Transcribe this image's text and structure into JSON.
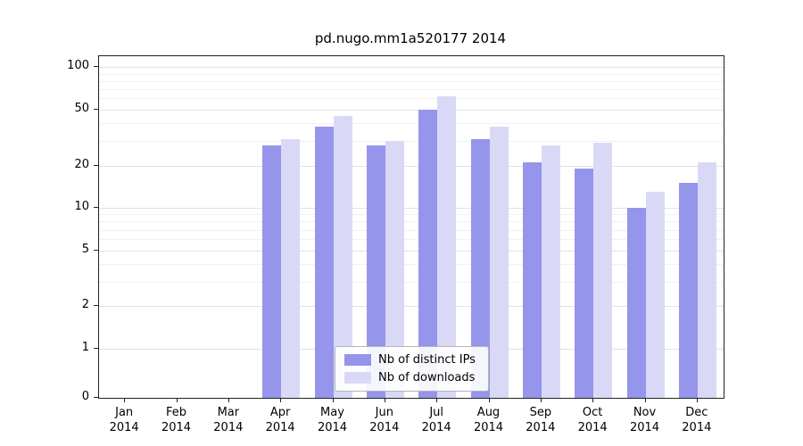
{
  "title": "pd.nugo.mm1a520177 2014",
  "chart_data": {
    "type": "bar",
    "title": "pd.nugo.mm1a520177 2014",
    "categories": [
      "Jan",
      "Feb",
      "Mar",
      "Apr",
      "May",
      "Jun",
      "Jul",
      "Aug",
      "Sep",
      "Oct",
      "Nov",
      "Dec"
    ],
    "year_label": "2014",
    "series": [
      {
        "name": "Nb of distinct IPs",
        "color": "#9595ec",
        "values": [
          0,
          0,
          0,
          28,
          38,
          28,
          50,
          31,
          21,
          19,
          10,
          15
        ]
      },
      {
        "name": "Nb of downloads",
        "color": "#d9d9f7",
        "values": [
          0,
          0,
          0,
          31,
          45,
          30,
          62,
          38,
          28,
          29,
          13,
          21
        ]
      }
    ],
    "xlabel": "",
    "ylabel": "",
    "yticks": [
      0,
      1,
      2,
      5,
      10,
      20,
      50,
      100
    ],
    "minor_gridlines": [
      3,
      4,
      6,
      7,
      8,
      9,
      30,
      40,
      60,
      70,
      80,
      90
    ],
    "scale": "symlog",
    "ylim": [
      0,
      120
    ],
    "grid": "horizontal",
    "legend_position": "lower center"
  }
}
